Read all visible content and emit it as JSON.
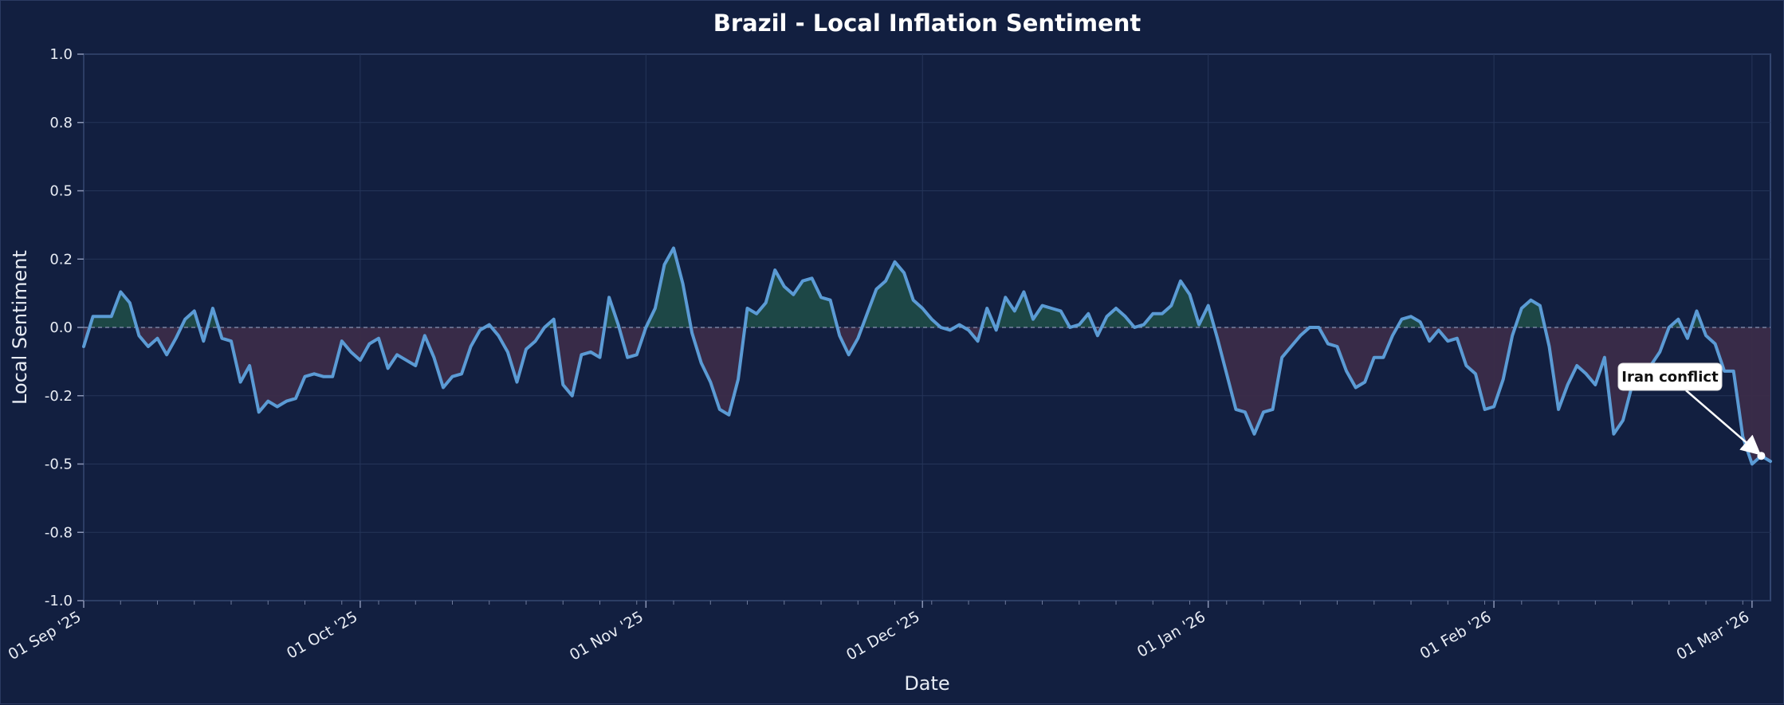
{
  "chart_data": {
    "type": "area",
    "title": "Brazil - Local Inflation Sentiment",
    "xlabel": "Date",
    "ylabel": "Local Sentiment",
    "ylim": [
      -1.0,
      1.0
    ],
    "yticks": [
      "1.0",
      "0.8",
      "0.5",
      "0.2",
      "0.0",
      "-0.2",
      "-0.5",
      "-0.8",
      "-1.0"
    ],
    "xticks": [
      "01 Sep '25",
      "01 Oct '25",
      "01 Nov '25",
      "01 Dec '25",
      "01 Jan '26",
      "01 Feb '26",
      "01 Mar '26"
    ],
    "x_start": "2025-09-01",
    "x_end": "2026-03-03",
    "grid": true,
    "baseline": 0,
    "colors": {
      "line": "#5b9bd5",
      "positive_fill": "#1f4a47",
      "negative_fill": "#3b2c49",
      "background": "#121f40",
      "grid": "#253559",
      "baseline": "#8a95b5"
    },
    "series": [
      {
        "x": [
          "2025-09-01",
          "2025-09-02",
          "2025-09-03",
          "2025-09-04",
          "2025-09-05",
          "2025-09-06",
          "2025-09-07",
          "2025-09-08",
          "2025-09-09",
          "2025-09-10",
          "2025-09-11",
          "2025-09-12",
          "2025-09-13",
          "2025-09-14",
          "2025-09-15",
          "2025-09-16",
          "2025-09-17",
          "2025-09-18",
          "2025-09-19",
          "2025-09-20",
          "2025-09-21",
          "2025-09-22",
          "2025-09-23",
          "2025-09-24",
          "2025-09-25",
          "2025-09-26",
          "2025-09-27",
          "2025-09-28",
          "2025-09-29",
          "2025-09-30",
          "2025-10-01",
          "2025-10-02",
          "2025-10-03",
          "2025-10-04",
          "2025-10-05",
          "2025-10-06",
          "2025-10-07",
          "2025-10-08",
          "2025-10-09",
          "2025-10-10",
          "2025-10-11",
          "2025-10-12",
          "2025-10-13",
          "2025-10-14",
          "2025-10-15",
          "2025-10-16",
          "2025-10-17",
          "2025-10-18",
          "2025-10-19",
          "2025-10-20",
          "2025-10-21",
          "2025-10-22",
          "2025-10-23",
          "2025-10-24",
          "2025-10-25",
          "2025-10-26",
          "2025-10-27",
          "2025-10-28",
          "2025-10-29",
          "2025-10-30",
          "2025-10-31",
          "2025-11-01",
          "2025-11-02",
          "2025-11-03",
          "2025-11-04",
          "2025-11-05",
          "2025-11-06",
          "2025-11-07",
          "2025-11-08",
          "2025-11-09",
          "2025-11-10",
          "2025-11-11",
          "2025-11-12",
          "2025-11-13",
          "2025-11-14",
          "2025-11-15",
          "2025-11-16",
          "2025-11-17",
          "2025-11-18",
          "2025-11-19",
          "2025-11-20",
          "2025-11-21",
          "2025-11-22",
          "2025-11-23",
          "2025-11-24",
          "2025-11-25",
          "2025-11-26",
          "2025-11-27",
          "2025-11-28",
          "2025-11-29",
          "2025-11-30",
          "2025-12-01",
          "2025-12-02",
          "2025-12-03",
          "2025-12-04",
          "2025-12-05",
          "2025-12-06",
          "2025-12-07",
          "2025-12-08",
          "2025-12-09",
          "2025-12-10",
          "2025-12-11",
          "2025-12-12",
          "2025-12-13",
          "2025-12-14",
          "2025-12-15",
          "2025-12-16",
          "2025-12-17",
          "2025-12-18",
          "2025-12-19",
          "2025-12-20",
          "2025-12-21",
          "2025-12-22",
          "2025-12-23",
          "2025-12-24",
          "2025-12-25",
          "2025-12-26",
          "2025-12-27",
          "2025-12-28",
          "2025-12-29",
          "2025-12-30",
          "2025-12-31",
          "2026-01-01",
          "2026-01-02",
          "2026-01-03",
          "2026-01-04",
          "2026-01-05",
          "2026-01-06",
          "2026-01-07",
          "2026-01-08",
          "2026-01-09",
          "2026-01-10",
          "2026-01-11",
          "2026-01-12",
          "2026-01-13",
          "2026-01-14",
          "2026-01-15",
          "2026-01-16",
          "2026-01-17",
          "2026-01-18",
          "2026-01-19",
          "2026-01-20",
          "2026-01-21",
          "2026-01-22",
          "2026-01-23",
          "2026-01-24",
          "2026-01-25",
          "2026-01-26",
          "2026-01-27",
          "2026-01-28",
          "2026-01-29",
          "2026-01-30",
          "2026-01-31",
          "2026-02-01",
          "2026-02-02",
          "2026-02-03",
          "2026-02-04",
          "2026-02-05",
          "2026-02-06",
          "2026-02-07",
          "2026-02-08",
          "2026-02-09",
          "2026-02-10",
          "2026-02-11",
          "2026-02-12",
          "2026-02-13",
          "2026-02-14",
          "2026-02-15",
          "2026-02-16",
          "2026-02-17",
          "2026-02-18",
          "2026-02-19",
          "2026-02-20",
          "2026-02-21",
          "2026-02-22",
          "2026-02-23",
          "2026-02-24",
          "2026-02-25",
          "2026-02-26",
          "2026-02-27",
          "2026-02-28",
          "2026-03-01",
          "2026-03-02",
          "2026-03-03"
        ],
        "values": [
          -0.07,
          0.04,
          0.04,
          0.04,
          0.13,
          0.09,
          -0.03,
          -0.07,
          -0.04,
          -0.1,
          -0.04,
          0.03,
          0.06,
          -0.05,
          0.07,
          -0.04,
          -0.05,
          -0.2,
          -0.14,
          -0.31,
          -0.27,
          -0.29,
          -0.27,
          -0.26,
          -0.18,
          -0.17,
          -0.18,
          -0.18,
          -0.05,
          -0.09,
          -0.12,
          -0.06,
          -0.04,
          -0.15,
          -0.1,
          -0.12,
          -0.14,
          -0.03,
          -0.11,
          -0.22,
          -0.18,
          -0.17,
          -0.07,
          -0.01,
          0.01,
          -0.03,
          -0.09,
          -0.2,
          -0.08,
          -0.05,
          0.0,
          0.03,
          -0.21,
          -0.25,
          -0.1,
          -0.09,
          -0.11,
          0.11,
          0.01,
          -0.11,
          -0.1,
          0.0,
          0.07,
          0.23,
          0.29,
          0.16,
          -0.02,
          -0.13,
          -0.2,
          -0.3,
          -0.32,
          -0.19,
          0.07,
          0.05,
          0.09,
          0.21,
          0.15,
          0.12,
          0.17,
          0.18,
          0.11,
          0.1,
          -0.03,
          -0.1,
          -0.04,
          0.05,
          0.14,
          0.17,
          0.24,
          0.2,
          0.1,
          0.07,
          0.03,
          0.0,
          -0.01,
          0.01,
          -0.01,
          -0.05,
          0.07,
          -0.01,
          0.11,
          0.06,
          0.13,
          0.03,
          0.08,
          0.07,
          0.06,
          0.0,
          0.01,
          0.05,
          -0.03,
          0.04,
          0.07,
          0.04,
          0.0,
          0.01,
          0.05,
          0.05,
          0.08,
          0.17,
          0.12,
          0.01,
          0.08,
          -0.04,
          -0.17,
          -0.3,
          -0.31,
          -0.39,
          -0.31,
          -0.3,
          -0.11,
          -0.07,
          -0.03,
          0.0,
          0.0,
          -0.06,
          -0.07,
          -0.16,
          -0.22,
          -0.2,
          -0.11,
          -0.11,
          -0.03,
          0.03,
          0.04,
          0.02,
          -0.05,
          -0.01,
          -0.05,
          -0.04,
          -0.14,
          -0.17,
          -0.3,
          -0.29,
          -0.19,
          -0.03,
          0.07,
          0.1,
          0.08,
          -0.07,
          -0.3,
          -0.21,
          -0.14,
          -0.17,
          -0.21,
          -0.11,
          -0.39,
          -0.34,
          -0.21,
          -0.18,
          -0.14,
          -0.09,
          0.0,
          0.03,
          -0.04,
          0.06,
          -0.03,
          -0.06,
          -0.16,
          -0.16,
          -0.4,
          -0.5,
          -0.47,
          -0.49
        ]
      }
    ],
    "annotations": [
      {
        "text": "Iran conflict",
        "x": "2026-03-02",
        "y": -0.47
      }
    ]
  }
}
